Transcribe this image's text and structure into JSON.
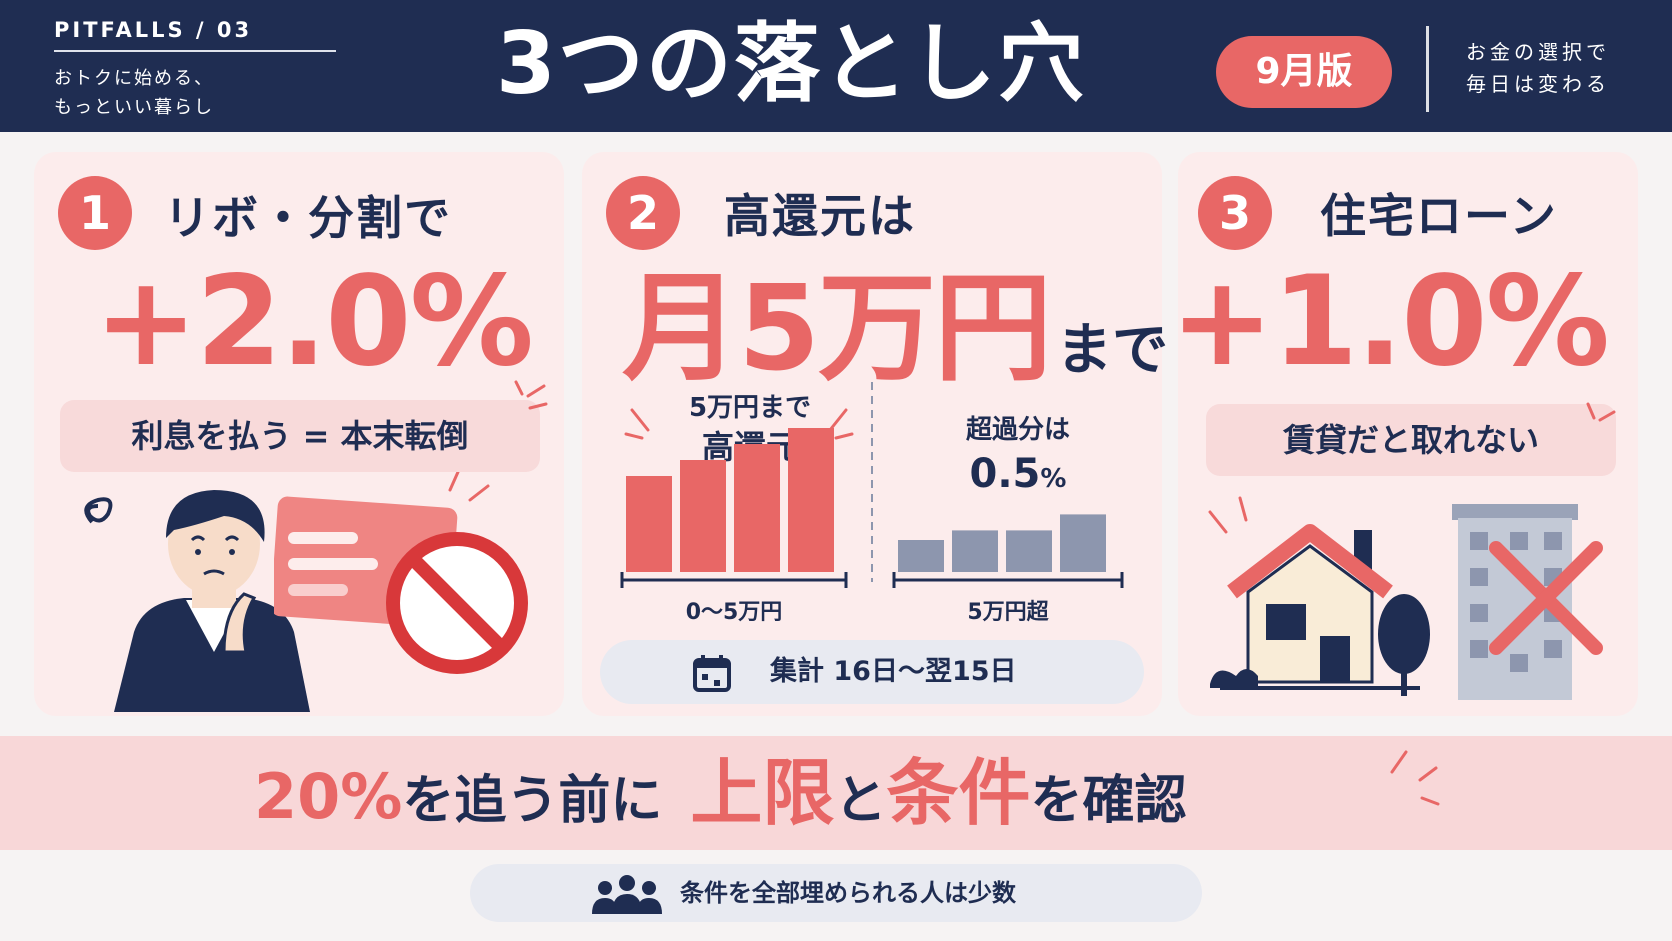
{
  "header": {
    "series": "PITFALLS / 03",
    "tagline_line1": "おトクに始める、",
    "tagline_line2": "もっといい暮らし",
    "title": "3つの落とし穴",
    "edition": "9月版",
    "motto_line1": "お金の選択で",
    "motto_line2": "毎日は変わる"
  },
  "cards": [
    {
      "number": "1",
      "heading": "リボ・分割で",
      "stat": "+2.0%",
      "note": "利息を払う = 本末転倒",
      "icons": [
        "worried-person-icon",
        "credit-card-icon",
        "prohibited-icon"
      ]
    },
    {
      "number": "2",
      "heading": "高還元は",
      "stat_main": "月5万円",
      "stat_suffix": "まで",
      "left_label_line1": "5万円まで",
      "left_label_line2": "高還元",
      "right_label_line1": "超過分は",
      "right_value": "0.5",
      "right_unit": "%",
      "left_axis": "0〜5万円",
      "right_axis": "5万円超",
      "period_text": "集計 16日〜翌15日",
      "icons": [
        "calendar-icon"
      ]
    },
    {
      "number": "3",
      "heading": "住宅ローン",
      "stat": "+1.0%",
      "note": "賃貸だと取れない",
      "icons": [
        "house-icon",
        "tree-icon",
        "apartment-icon",
        "cross-mark-icon"
      ]
    }
  ],
  "banner": {
    "part1": "20%",
    "part2": "を追う前に",
    "part3": "上限",
    "part4": "と",
    "part5": "条件",
    "part6": "を確認"
  },
  "footnote": {
    "text": "条件を全部埋められる人は少数",
    "icon": "people-icon"
  },
  "chart_data": {
    "type": "bar",
    "groups": [
      {
        "name": "0〜5万円",
        "values": [
          3.0,
          3.5,
          4.0,
          4.5
        ]
      },
      {
        "name": "5万円超",
        "values": [
          1.0,
          1.3,
          1.3,
          1.8
        ]
      }
    ],
    "ylim": [
      0,
      5
    ],
    "colors": {
      "high": "#e86766",
      "low": "#8d96ae"
    }
  },
  "colors": {
    "navy": "#1f2d52",
    "accent": "#e86766",
    "card_bg": "#fcecec",
    "pill_bg": "#f8dada",
    "banner_bg": "#f8d7d8",
    "soft_gray": "#e8eaf1"
  }
}
